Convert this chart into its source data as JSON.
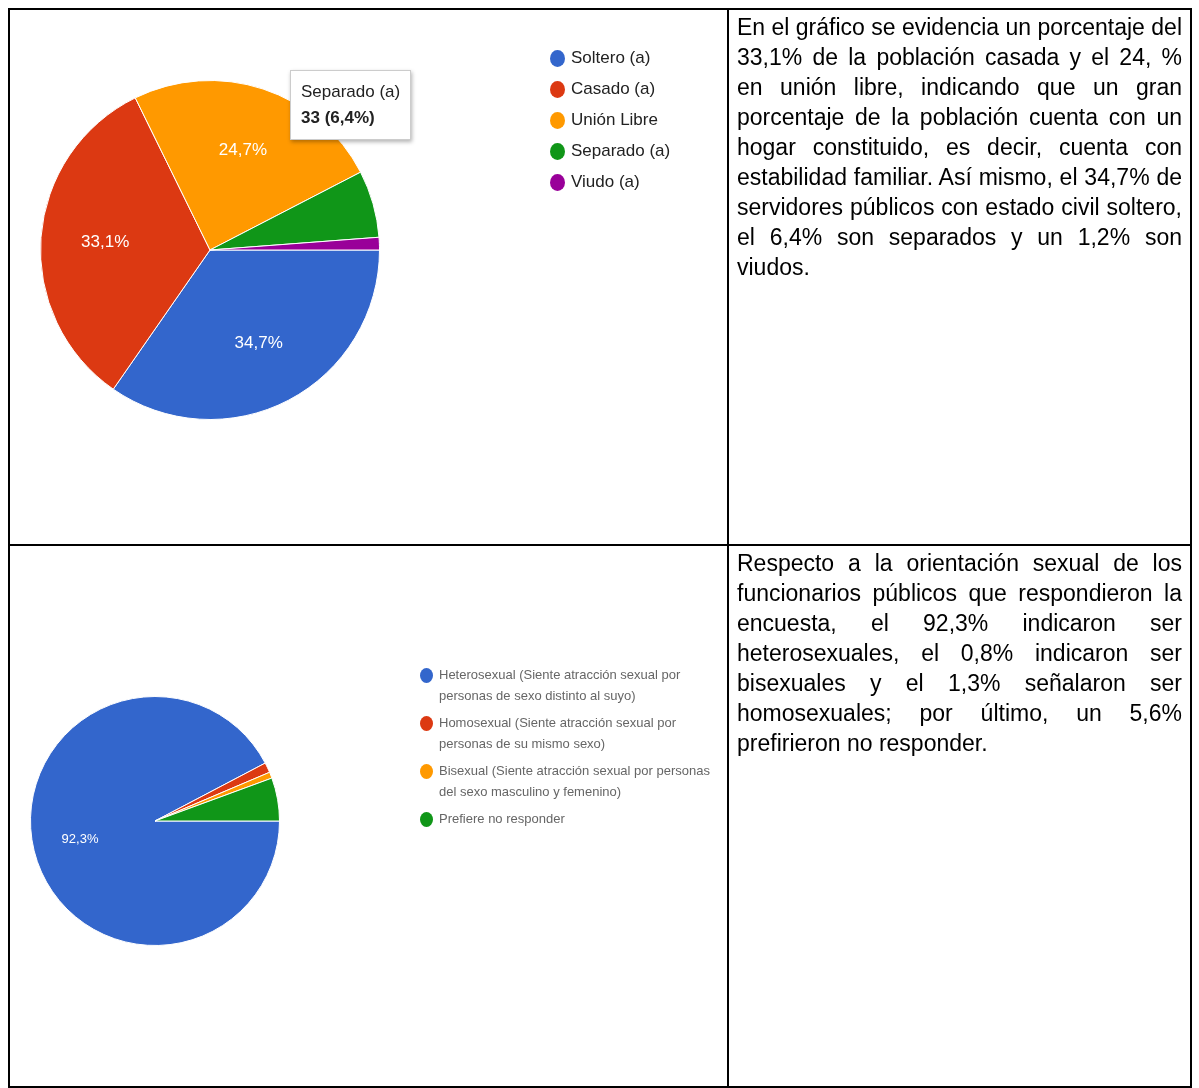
{
  "chart_data": [
    {
      "type": "pie",
      "categories": [
        "Soltero (a)",
        "Casado (a)",
        "Unión Libre",
        "Separado (a)",
        "Viudo (a)"
      ],
      "values": [
        34.7,
        33.1,
        24.7,
        6.4,
        1.2
      ],
      "colors": [
        "#3366cc",
        "#dc3912",
        "#ff9900",
        "#109618",
        "#990099"
      ],
      "value_labels": [
        "34,7%",
        "33,1%",
        "24,7%",
        null,
        null
      ],
      "legend": "top right",
      "annotations": [
        "Separado (a)",
        "33 (6,4%)"
      ]
    },
    {
      "type": "other",
      "annotations": [
        "En el gráfico se evidencia un porcentaje del 33,1% de la población casada y el 24, % en unión libre, indicando que un gran porcentaje de la población cuenta con un hogar constituido, es decir, cuenta con estabilidad familiar. Así mismo, el 34,7% de servidores públicos con estado civil soltero, el 6,4% son separados y un 1,2% son viudos."
      ]
    },
    {
      "type": "pie",
      "categories": [
        "Heterosexual (Siente atracción sexual por personas de sexo distinto al suyo)",
        "Homosexual (Siente atracción sexual por personas de su mismo sexo)",
        "Bisexual (Siente atracción sexual por personas del sexo masculino y femenino)",
        "Prefiere no responder"
      ],
      "values": [
        92.3,
        1.3,
        0.8,
        5.6
      ],
      "colors": [
        "#3366cc",
        "#dc3912",
        "#ff9900",
        "#109618"
      ],
      "value_labels": [
        "92,3%",
        null,
        null,
        null
      ],
      "legend": "top right"
    },
    {
      "type": "other",
      "annotations": [
        "Respecto a la orientación sexual de los funcionarios públicos que respondieron la encuesta, el 92,3% indicaron ser heterosexuales, el 0,8% indicaron ser bisexuales y el 1,3% señalaron ser homosexuales; por último, un 5,6% prefirieron no responder."
      ]
    }
  ]
}
